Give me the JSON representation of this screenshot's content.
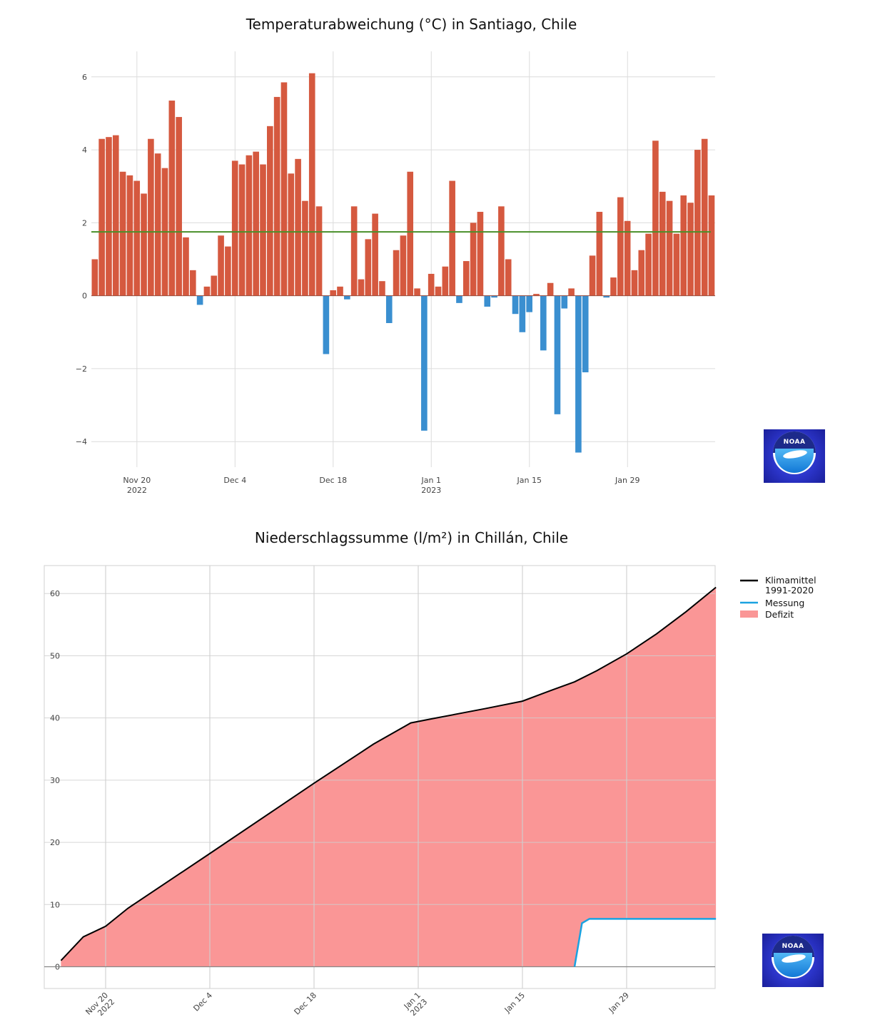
{
  "chart_data": [
    {
      "type": "bar",
      "title": "Temperaturabweichung (°C) in Santiago, Chile",
      "xlabel": "",
      "ylabel": "",
      "ylim": [
        -4.7,
        6.7
      ],
      "yticks": [
        "−4",
        "−2",
        "0",
        "2",
        "4",
        "6"
      ],
      "ytick_values": [
        -4,
        -2,
        0,
        2,
        4,
        6
      ],
      "xticks": [
        "Nov 20\n2022",
        "Dec 4",
        "Dec 18",
        "Jan 1\n2023",
        "Jan 15",
        "Jan 29"
      ],
      "xtick_dates": [
        "2022-11-20",
        "2022-12-04",
        "2022-12-18",
        "2023-01-01",
        "2023-01-15",
        "2023-01-29"
      ],
      "start_date": "2022-11-14",
      "grid": true,
      "reference_line": 1.75,
      "colors": {
        "positive": "#d5593f",
        "negative": "#3a8fd0",
        "reference": "#4a8f2a"
      },
      "values": [
        1.0,
        4.3,
        4.35,
        4.4,
        3.4,
        3.3,
        3.15,
        2.8,
        4.3,
        3.9,
        3.5,
        5.35,
        4.9,
        1.6,
        0.7,
        -0.25,
        0.25,
        0.55,
        1.65,
        1.35,
        3.7,
        3.6,
        3.85,
        3.95,
        3.6,
        4.65,
        5.45,
        5.85,
        3.35,
        3.75,
        2.6,
        6.1,
        2.45,
        -1.6,
        0.15,
        0.25,
        -0.1,
        2.45,
        0.45,
        1.55,
        2.25,
        0.4,
        -0.75,
        1.25,
        1.65,
        3.4,
        0.2,
        -3.7,
        0.6,
        0.25,
        0.8,
        3.15,
        -0.2,
        0.95,
        2.0,
        2.3,
        -0.3,
        -0.05,
        2.45,
        1.0,
        -0.5,
        -1.0,
        -0.45,
        0.05,
        -1.5,
        0.35,
        -3.25,
        -0.35,
        0.2,
        -4.3,
        -2.1,
        1.1,
        2.3,
        -0.05,
        0.5,
        2.7,
        2.05,
        0.7,
        1.25,
        1.7,
        4.25,
        2.85,
        2.6,
        1.7,
        2.75,
        2.55,
        4.0,
        4.3,
        2.75
      ]
    },
    {
      "type": "area",
      "title": "Niederschlagssumme (l/m²) in Chillán, Chile",
      "xlabel": "",
      "ylabel": "",
      "ylim": [
        -3.5,
        64.5
      ],
      "yticks": [
        "0",
        "10",
        "20",
        "30",
        "40",
        "50",
        "60"
      ],
      "ytick_values": [
        0,
        10,
        20,
        30,
        40,
        50,
        60
      ],
      "xticks": [
        "Nov 20\n2022",
        "Dec 4",
        "Dec 18",
        "Jan 1\n2023",
        "Jan 15",
        "Jan 29"
      ],
      "xtick_dates": [
        "2022-11-20",
        "2022-12-04",
        "2022-12-18",
        "2023-01-01",
        "2023-01-15",
        "2023-01-29"
      ],
      "xrange": [
        "2022-11-14",
        "2023-02-11"
      ],
      "grid": true,
      "legend": "top-right",
      "series": [
        {
          "name": "Klimamittel\n1991-2020",
          "color": "#000000",
          "points": [
            [
              "2022-11-14",
              1.0
            ],
            [
              "2022-11-17",
              4.8
            ],
            [
              "2022-11-20",
              6.5
            ],
            [
              "2022-11-23",
              9.4
            ],
            [
              "2022-12-04",
              18.2
            ],
            [
              "2022-12-18",
              29.5
            ],
            [
              "2022-12-26",
              35.8
            ],
            [
              "2022-12-31",
              39.2
            ],
            [
              "2023-01-03",
              39.9
            ],
            [
              "2023-01-10",
              41.5
            ],
            [
              "2023-01-15",
              42.7
            ],
            [
              "2023-01-19",
              44.5
            ],
            [
              "2023-01-22",
              45.8
            ],
            [
              "2023-01-25",
              47.6
            ],
            [
              "2023-01-29",
              50.3
            ],
            [
              "2023-02-02",
              53.5
            ],
            [
              "2023-02-06",
              57.1
            ],
            [
              "2023-02-10",
              61.0
            ]
          ]
        },
        {
          "name": "Messung",
          "color": "#1aa2e0",
          "points": [
            [
              "2022-11-14",
              0
            ],
            [
              "2023-01-22",
              0
            ],
            [
              "2023-01-23",
              7.0
            ],
            [
              "2023-01-24",
              7.7
            ],
            [
              "2023-02-10",
              7.7
            ]
          ]
        },
        {
          "name": "Defizit",
          "color": "#fa9696"
        }
      ]
    }
  ],
  "logos": {
    "noaa_text": "NOAA"
  }
}
